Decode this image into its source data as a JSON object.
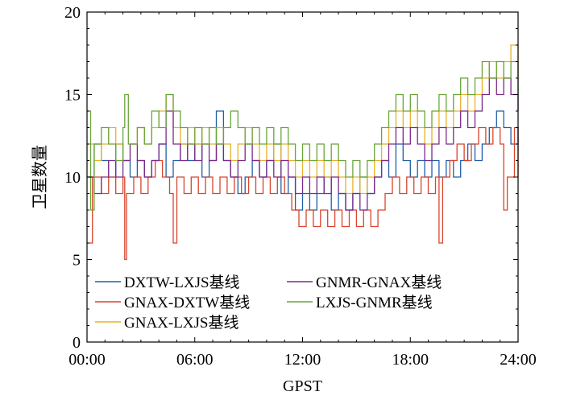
{
  "chart_data": {
    "type": "line",
    "title": "",
    "xlabel": "GPST",
    "ylabel": "卫星数量",
    "xlim": [
      0,
      24
    ],
    "ylim": [
      0,
      20
    ],
    "x_ticks": [
      0,
      6,
      12,
      18,
      24
    ],
    "x_tick_labels": [
      "00:00",
      "06:00",
      "12:00",
      "18:00",
      "24:00"
    ],
    "y_ticks": [
      0,
      5,
      10,
      15,
      20
    ],
    "y_tick_labels": [
      "0",
      "5",
      "10",
      "15",
      "20"
    ],
    "grid": false,
    "legend_position": "bottom-left",
    "series": [
      {
        "name": "DXTW-LXJS基线",
        "color": "#1f5fa8",
        "points": [
          [
            0,
            10
          ],
          [
            0.4,
            12
          ],
          [
            0.8,
            11
          ],
          [
            1.2,
            10
          ],
          [
            1.6,
            12
          ],
          [
            2.0,
            11
          ],
          [
            2.4,
            10
          ],
          [
            2.8,
            11
          ],
          [
            3.2,
            10
          ],
          [
            3.6,
            11
          ],
          [
            4.0,
            12
          ],
          [
            4.4,
            10
          ],
          [
            4.8,
            11
          ],
          [
            5.2,
            12
          ],
          [
            5.6,
            11
          ],
          [
            6.0,
            12
          ],
          [
            6.4,
            10
          ],
          [
            6.8,
            11
          ],
          [
            7.2,
            14
          ],
          [
            7.6,
            11
          ],
          [
            8.0,
            10
          ],
          [
            8.4,
            9
          ],
          [
            8.8,
            10
          ],
          [
            9.2,
            11
          ],
          [
            9.6,
            10
          ],
          [
            10.0,
            11
          ],
          [
            10.4,
            12
          ],
          [
            10.8,
            9
          ],
          [
            11.2,
            10
          ],
          [
            11.6,
            8
          ],
          [
            12.0,
            9
          ],
          [
            12.4,
            8
          ],
          [
            12.8,
            9
          ],
          [
            13.2,
            10
          ],
          [
            13.6,
            8
          ],
          [
            14.0,
            9
          ],
          [
            14.4,
            8
          ],
          [
            14.8,
            9
          ],
          [
            15.2,
            10
          ],
          [
            15.6,
            9
          ],
          [
            16.0,
            10
          ],
          [
            16.4,
            11
          ],
          [
            16.8,
            10
          ],
          [
            17.2,
            12
          ],
          [
            17.6,
            11
          ],
          [
            18.0,
            10
          ],
          [
            18.4,
            11
          ],
          [
            18.8,
            10
          ],
          [
            19.2,
            11
          ],
          [
            19.6,
            10
          ],
          [
            20.0,
            11
          ],
          [
            20.4,
            10
          ],
          [
            20.8,
            11
          ],
          [
            21.2,
            12
          ],
          [
            21.6,
            11
          ],
          [
            22.0,
            12
          ],
          [
            22.4,
            13
          ],
          [
            22.8,
            14
          ],
          [
            23.2,
            13
          ],
          [
            23.6,
            12
          ],
          [
            24.0,
            13
          ]
        ]
      },
      {
        "name": "GNAX-DXTW基线",
        "color": "#d9442b",
        "points": [
          [
            0,
            6
          ],
          [
            0.3,
            10
          ],
          [
            0.8,
            9
          ],
          [
            1.2,
            10
          ],
          [
            1.6,
            9
          ],
          [
            2.0,
            10
          ],
          [
            2.1,
            5
          ],
          [
            2.2,
            9
          ],
          [
            2.6,
            10
          ],
          [
            3.0,
            9
          ],
          [
            3.4,
            10
          ],
          [
            3.8,
            11
          ],
          [
            4.2,
            10
          ],
          [
            4.6,
            9
          ],
          [
            4.8,
            6
          ],
          [
            5.0,
            10
          ],
          [
            5.4,
            9
          ],
          [
            5.8,
            10
          ],
          [
            6.2,
            9
          ],
          [
            6.6,
            10
          ],
          [
            7.0,
            9
          ],
          [
            7.4,
            10
          ],
          [
            7.8,
            9
          ],
          [
            8.2,
            10
          ],
          [
            8.6,
            9
          ],
          [
            9.0,
            10
          ],
          [
            9.4,
            9
          ],
          [
            9.8,
            10
          ],
          [
            10.2,
            9
          ],
          [
            10.6,
            10
          ],
          [
            11.0,
            9
          ],
          [
            11.4,
            8
          ],
          [
            11.8,
            7
          ],
          [
            12.2,
            8
          ],
          [
            12.6,
            7
          ],
          [
            13.0,
            8
          ],
          [
            13.4,
            7
          ],
          [
            13.8,
            8
          ],
          [
            14.2,
            7
          ],
          [
            14.6,
            8
          ],
          [
            15.0,
            7
          ],
          [
            15.4,
            8
          ],
          [
            15.8,
            7
          ],
          [
            16.2,
            8
          ],
          [
            16.6,
            9
          ],
          [
            17.0,
            10
          ],
          [
            17.4,
            9
          ],
          [
            17.8,
            10
          ],
          [
            18.2,
            9
          ],
          [
            18.6,
            10
          ],
          [
            19.0,
            9
          ],
          [
            19.4,
            10
          ],
          [
            19.6,
            6
          ],
          [
            19.8,
            10
          ],
          [
            20.2,
            11
          ],
          [
            20.6,
            12
          ],
          [
            21.0,
            11
          ],
          [
            21.4,
            12
          ],
          [
            21.8,
            13
          ],
          [
            22.2,
            12
          ],
          [
            22.6,
            13
          ],
          [
            23.0,
            12
          ],
          [
            23.2,
            8
          ],
          [
            23.4,
            10
          ],
          [
            23.8,
            13
          ],
          [
            24.0,
            10
          ]
        ]
      },
      {
        "name": "GNAX-LXJS基线",
        "color": "#e8b22a",
        "points": [
          [
            0,
            12
          ],
          [
            0.4,
            11
          ],
          [
            0.8,
            12
          ],
          [
            1.2,
            13
          ],
          [
            1.6,
            12
          ],
          [
            2.0,
            11
          ],
          [
            2.4,
            12
          ],
          [
            2.8,
            13
          ],
          [
            3.2,
            12
          ],
          [
            3.6,
            13
          ],
          [
            4.0,
            14
          ],
          [
            4.4,
            15
          ],
          [
            4.8,
            13
          ],
          [
            5.2,
            12
          ],
          [
            5.6,
            13
          ],
          [
            6.0,
            12
          ],
          [
            6.4,
            13
          ],
          [
            6.8,
            12
          ],
          [
            7.2,
            13
          ],
          [
            7.6,
            12
          ],
          [
            8.0,
            11
          ],
          [
            8.4,
            12
          ],
          [
            8.8,
            13
          ],
          [
            9.2,
            12
          ],
          [
            9.6,
            11
          ],
          [
            10.0,
            12
          ],
          [
            10.4,
            11
          ],
          [
            10.8,
            12
          ],
          [
            11.2,
            11
          ],
          [
            11.6,
            10
          ],
          [
            12.0,
            11
          ],
          [
            12.4,
            10
          ],
          [
            12.8,
            11
          ],
          [
            13.2,
            10
          ],
          [
            13.6,
            11
          ],
          [
            14.0,
            10
          ],
          [
            14.4,
            9
          ],
          [
            14.8,
            10
          ],
          [
            15.2,
            9
          ],
          [
            15.6,
            10
          ],
          [
            16.0,
            11
          ],
          [
            16.4,
            12
          ],
          [
            16.8,
            13
          ],
          [
            17.2,
            14
          ],
          [
            17.6,
            13
          ],
          [
            18.0,
            14
          ],
          [
            18.4,
            13
          ],
          [
            18.8,
            12
          ],
          [
            19.2,
            13
          ],
          [
            19.6,
            14
          ],
          [
            20.0,
            13
          ],
          [
            20.4,
            14
          ],
          [
            20.8,
            15
          ],
          [
            21.2,
            14
          ],
          [
            21.6,
            15
          ],
          [
            22.0,
            16
          ],
          [
            22.4,
            17
          ],
          [
            22.8,
            16
          ],
          [
            23.2,
            17
          ],
          [
            23.6,
            18
          ],
          [
            24.0,
            16
          ]
        ]
      },
      {
        "name": "GNMR-GNAX基线",
        "color": "#7a2a8a",
        "points": [
          [
            0,
            10
          ],
          [
            0.4,
            9
          ],
          [
            0.8,
            10
          ],
          [
            1.2,
            11
          ],
          [
            1.6,
            10
          ],
          [
            2.0,
            11
          ],
          [
            2.4,
            12
          ],
          [
            2.8,
            11
          ],
          [
            3.2,
            10
          ],
          [
            3.6,
            11
          ],
          [
            4.0,
            12
          ],
          [
            4.4,
            14
          ],
          [
            4.8,
            12
          ],
          [
            5.2,
            11
          ],
          [
            5.6,
            12
          ],
          [
            6.0,
            11
          ],
          [
            6.4,
            12
          ],
          [
            6.8,
            11
          ],
          [
            7.2,
            12
          ],
          [
            7.6,
            11
          ],
          [
            8.0,
            10
          ],
          [
            8.4,
            11
          ],
          [
            8.8,
            12
          ],
          [
            9.2,
            11
          ],
          [
            9.6,
            10
          ],
          [
            10.0,
            11
          ],
          [
            10.4,
            10
          ],
          [
            10.8,
            11
          ],
          [
            11.2,
            10
          ],
          [
            11.6,
            9
          ],
          [
            12.0,
            10
          ],
          [
            12.4,
            9
          ],
          [
            12.8,
            10
          ],
          [
            13.2,
            9
          ],
          [
            13.6,
            10
          ],
          [
            14.0,
            9
          ],
          [
            14.4,
            8
          ],
          [
            14.8,
            9
          ],
          [
            15.2,
            8
          ],
          [
            15.6,
            9
          ],
          [
            16.0,
            10
          ],
          [
            16.4,
            11
          ],
          [
            16.8,
            12
          ],
          [
            17.2,
            13
          ],
          [
            17.6,
            12
          ],
          [
            18.0,
            13
          ],
          [
            18.4,
            12
          ],
          [
            18.8,
            11
          ],
          [
            19.2,
            12
          ],
          [
            19.6,
            13
          ],
          [
            20.0,
            12
          ],
          [
            20.4,
            13
          ],
          [
            20.8,
            14
          ],
          [
            21.2,
            13
          ],
          [
            21.6,
            14
          ],
          [
            22.0,
            15
          ],
          [
            22.4,
            16
          ],
          [
            22.8,
            15
          ],
          [
            23.2,
            16
          ],
          [
            23.6,
            15
          ],
          [
            24.0,
            14
          ]
        ]
      },
      {
        "name": "LXJS-GNMR基线",
        "color": "#6aa53a",
        "points": [
          [
            0,
            14
          ],
          [
            0.2,
            8
          ],
          [
            0.4,
            12
          ],
          [
            0.8,
            13
          ],
          [
            1.2,
            12
          ],
          [
            1.6,
            11
          ],
          [
            2.0,
            13
          ],
          [
            2.1,
            15
          ],
          [
            2.3,
            12
          ],
          [
            2.8,
            13
          ],
          [
            3.2,
            12
          ],
          [
            3.6,
            14
          ],
          [
            4.0,
            13
          ],
          [
            4.4,
            15
          ],
          [
            4.8,
            14
          ],
          [
            5.2,
            13
          ],
          [
            5.6,
            12
          ],
          [
            6.0,
            13
          ],
          [
            6.4,
            12
          ],
          [
            6.8,
            13
          ],
          [
            7.2,
            12
          ],
          [
            7.6,
            13
          ],
          [
            8.0,
            14
          ],
          [
            8.4,
            13
          ],
          [
            8.8,
            12
          ],
          [
            9.2,
            13
          ],
          [
            9.6,
            12
          ],
          [
            10.0,
            13
          ],
          [
            10.4,
            12
          ],
          [
            10.8,
            13
          ],
          [
            11.2,
            12
          ],
          [
            11.6,
            11
          ],
          [
            12.0,
            12
          ],
          [
            12.4,
            11
          ],
          [
            12.8,
            12
          ],
          [
            13.2,
            11
          ],
          [
            13.6,
            12
          ],
          [
            14.0,
            11
          ],
          [
            14.4,
            10
          ],
          [
            14.8,
            11
          ],
          [
            15.2,
            10
          ],
          [
            15.6,
            11
          ],
          [
            16.0,
            12
          ],
          [
            16.4,
            13
          ],
          [
            16.8,
            14
          ],
          [
            17.2,
            15
          ],
          [
            17.6,
            14
          ],
          [
            18.0,
            15
          ],
          [
            18.4,
            14
          ],
          [
            18.8,
            13
          ],
          [
            19.2,
            14
          ],
          [
            19.6,
            15
          ],
          [
            20.0,
            14
          ],
          [
            20.4,
            15
          ],
          [
            20.8,
            16
          ],
          [
            21.2,
            15
          ],
          [
            21.6,
            16
          ],
          [
            22.0,
            17
          ],
          [
            22.4,
            16
          ],
          [
            22.8,
            17
          ],
          [
            23.2,
            16
          ],
          [
            23.6,
            17
          ],
          [
            24.0,
            15
          ]
        ]
      }
    ]
  }
}
